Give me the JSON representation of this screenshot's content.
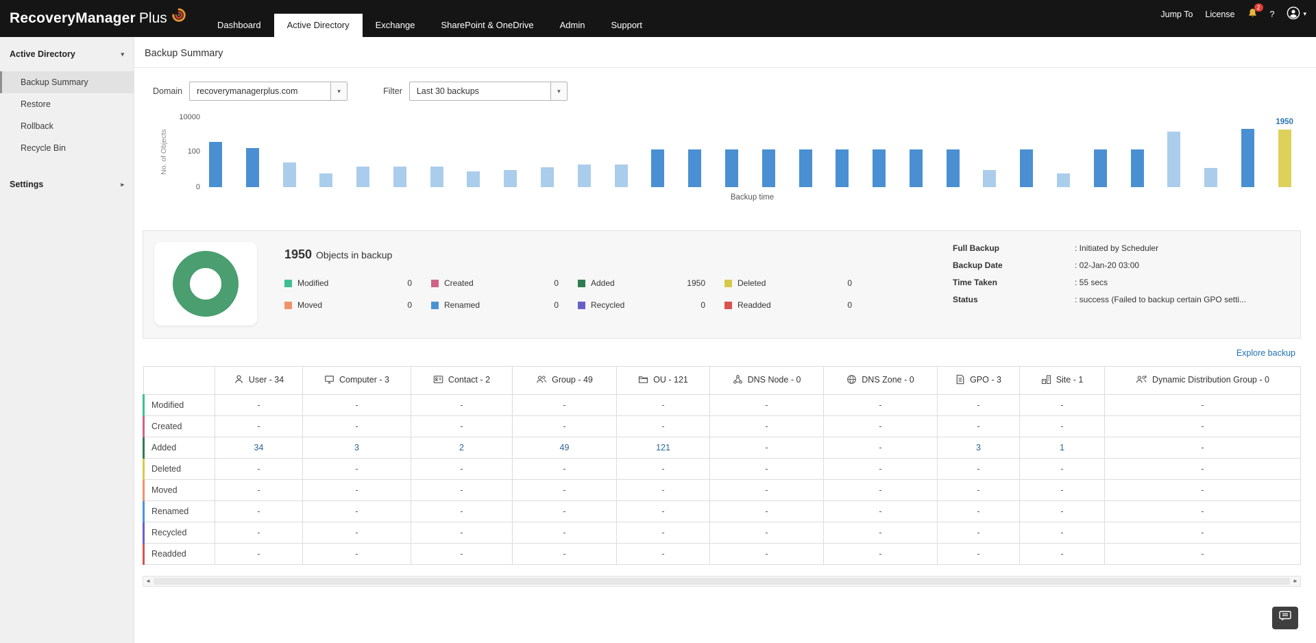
{
  "topbar": {
    "logo_main": "RecoveryManager",
    "logo_suffix": "Plus",
    "jump_to": "Jump To",
    "license": "License",
    "notification_count": "2",
    "help": "?"
  },
  "nav": {
    "tabs": [
      {
        "label": "Dashboard",
        "active": false
      },
      {
        "label": "Active Directory",
        "active": true
      },
      {
        "label": "Exchange",
        "active": false
      },
      {
        "label": "SharePoint & OneDrive",
        "active": false
      },
      {
        "label": "Admin",
        "active": false
      },
      {
        "label": "Support",
        "active": false
      }
    ]
  },
  "sidebar": {
    "section_label": "Active Directory",
    "items": [
      {
        "label": "Backup Summary",
        "selected": true
      },
      {
        "label": "Restore",
        "selected": false
      },
      {
        "label": "Rollback",
        "selected": false
      },
      {
        "label": "Recycle Bin",
        "selected": false
      }
    ],
    "settings_label": "Settings"
  },
  "page": {
    "title": "Backup Summary"
  },
  "filters": {
    "domain_label": "Domain",
    "domain_value": "recoverymanagerplus.com",
    "filter_label": "Filter",
    "filter_value": "Last 30 backups"
  },
  "chart_data": {
    "type": "bar",
    "title": "",
    "xlabel": "Backup time",
    "ylabel": "No. of Objects",
    "scale": "log",
    "ylim": [
      0,
      10000
    ],
    "yticks": [
      "10000",
      "100",
      "0"
    ],
    "values": [
      400,
      180,
      25,
      6,
      15,
      15,
      15,
      8,
      10,
      14,
      20,
      20,
      150,
      150,
      140,
      140,
      150,
      150,
      150,
      140,
      150,
      10,
      150,
      6,
      150,
      150,
      1500,
      12,
      2100,
      1950
    ],
    "colors": [
      "blue",
      "blue",
      "light",
      "light",
      "light",
      "light",
      "light",
      "light",
      "light",
      "light",
      "light",
      "light",
      "blue",
      "blue",
      "blue",
      "blue",
      "blue",
      "blue",
      "blue",
      "blue",
      "blue",
      "light",
      "blue",
      "light",
      "blue",
      "blue",
      "light",
      "light",
      "blue",
      "yellow"
    ],
    "palette": {
      "blue": "#4a8fd2",
      "light": "#abcdec",
      "yellow": "#ddd15b"
    },
    "annotation": {
      "bar_index": 29,
      "text": "1950",
      "color": "#2e75b6"
    },
    "legend_position": "none",
    "grid": false
  },
  "summary": {
    "total": "1950",
    "total_suffix": "Objects in backup",
    "donut_color": "#4a9e6f",
    "legend": [
      {
        "label": "Modified",
        "value": "0",
        "color": "#3fbf91"
      },
      {
        "label": "Created",
        "value": "0",
        "color": "#cf6487"
      },
      {
        "label": "Added",
        "value": "1950",
        "color": "#2e7d51"
      },
      {
        "label": "Deleted",
        "value": "0",
        "color": "#d6ca4a"
      },
      {
        "label": "Moved",
        "value": "0",
        "color": "#ef9368"
      },
      {
        "label": "Renamed",
        "value": "0",
        "color": "#4b94d4"
      },
      {
        "label": "Recycled",
        "value": "0",
        "color": "#6a5fc9"
      },
      {
        "label": "Readded",
        "value": "0",
        "color": "#d9534f"
      }
    ],
    "details": [
      {
        "label": "Full Backup",
        "value": ": Initiated by Scheduler"
      },
      {
        "label": "Backup Date",
        "value": ": 02-Jan-20 03:00"
      },
      {
        "label": "Time Taken",
        "value": ": 55 secs"
      },
      {
        "label": "Status",
        "value": ": success (Failed to backup certain GPO setti..."
      }
    ],
    "explore_link": "Explore backup"
  },
  "table": {
    "columns": [
      {
        "label": "User - 34",
        "icon": "user-icon"
      },
      {
        "label": "Computer - 3",
        "icon": "computer-icon"
      },
      {
        "label": "Contact - 2",
        "icon": "contact-icon"
      },
      {
        "label": "Group - 49",
        "icon": "group-icon"
      },
      {
        "label": "OU - 121",
        "icon": "ou-icon"
      },
      {
        "label": "DNS Node - 0",
        "icon": "dns-node-icon"
      },
      {
        "label": "DNS Zone - 0",
        "icon": "dns-zone-icon"
      },
      {
        "label": "GPO - 3",
        "icon": "gpo-icon"
      },
      {
        "label": "Site - 1",
        "icon": "site-icon"
      },
      {
        "label": "Dynamic Distribution Group - 0",
        "icon": "dynamic-distribution-group-icon"
      }
    ],
    "rows": [
      {
        "label": "Modified",
        "color": "#3fbf91",
        "values": [
          "-",
          "-",
          "-",
          "-",
          "-",
          "-",
          "-",
          "-",
          "-",
          "-"
        ]
      },
      {
        "label": "Created",
        "color": "#cf6487",
        "values": [
          "-",
          "-",
          "-",
          "-",
          "-",
          "-",
          "-",
          "-",
          "-",
          "-"
        ]
      },
      {
        "label": "Added",
        "color": "#2e7d51",
        "values": [
          "34",
          "3",
          "2",
          "49",
          "121",
          "-",
          "-",
          "3",
          "1",
          "-"
        ]
      },
      {
        "label": "Deleted",
        "color": "#d6ca4a",
        "values": [
          "-",
          "-",
          "-",
          "-",
          "-",
          "-",
          "-",
          "-",
          "-",
          "-"
        ]
      },
      {
        "label": "Moved",
        "color": "#ef9368",
        "values": [
          "-",
          "-",
          "-",
          "-",
          "-",
          "-",
          "-",
          "-",
          "-",
          "-"
        ]
      },
      {
        "label": "Renamed",
        "color": "#4b94d4",
        "values": [
          "-",
          "-",
          "-",
          "-",
          "-",
          "-",
          "-",
          "-",
          "-",
          "-"
        ]
      },
      {
        "label": "Recycled",
        "color": "#6a5fc9",
        "values": [
          "-",
          "-",
          "-",
          "-",
          "-",
          "-",
          "-",
          "-",
          "-",
          "-"
        ]
      },
      {
        "label": "Readded",
        "color": "#d9534f",
        "values": [
          "-",
          "-",
          "-",
          "-",
          "-",
          "-",
          "-",
          "-",
          "-",
          "-"
        ]
      }
    ]
  }
}
